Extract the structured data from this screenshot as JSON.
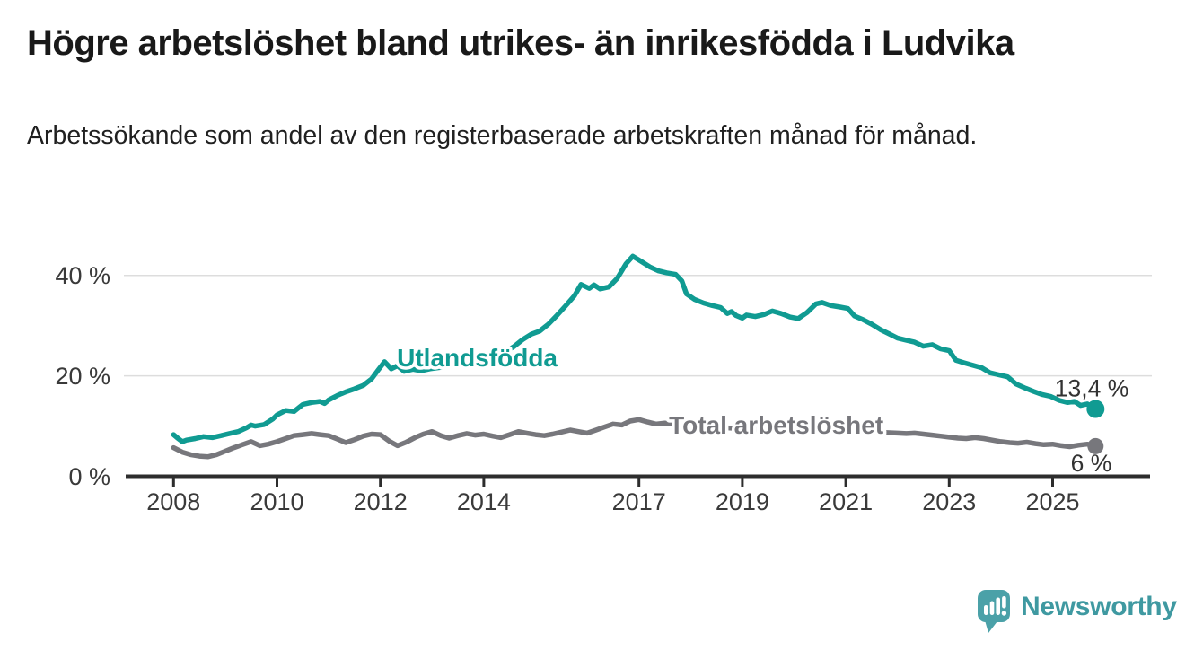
{
  "title": "Högre arbetslöshet bland utrikes- än inrikesfödda i Ludvika",
  "subtitle": "Arbetssökande som andel av den registerbaserade arbetskraften månad för månad.",
  "branding": {
    "logo_text": "Newsworthy",
    "icon": "newsworthy-speech-bubble-chart-icon"
  },
  "colors": {
    "foreign_born": "#109b92",
    "total": "#77777c",
    "axis": "#2d2d2d",
    "grid": "#dddddd",
    "tick_text": "#3a3a3a",
    "value_text": "#333333",
    "logo_icon": "#4ba1a8",
    "logo_text": "#3f99a1"
  },
  "chart_data": {
    "type": "line",
    "title": "Högre arbetslöshet bland utrikes- än inrikesfödda i Ludvika",
    "xlabel": "",
    "ylabel": "",
    "grid": "horizontal",
    "legend_position": "inline-labels",
    "x_axis": {
      "ticks": [
        2008,
        2010,
        2012,
        2014,
        2017,
        2019,
        2021,
        2023,
        2025
      ],
      "range": [
        2007.05,
        2026.9
      ]
    },
    "y_axis": {
      "tick_values": [
        0,
        20,
        40
      ],
      "tick_labels": [
        "0 %",
        "20 %",
        "40 %"
      ],
      "range": [
        0,
        46
      ],
      "unit": "%"
    },
    "series": [
      {
        "name": "Utlandsfödda",
        "color": "#109b92",
        "end_label": "13,4 %",
        "label_anchor": [
          2012.32,
          21.9
        ],
        "points": [
          [
            2008.0,
            8.3
          ],
          [
            2008.08,
            7.6
          ],
          [
            2008.17,
            6.9
          ],
          [
            2008.25,
            7.2
          ],
          [
            2008.42,
            7.5
          ],
          [
            2008.58,
            7.9
          ],
          [
            2008.75,
            7.7
          ],
          [
            2008.92,
            8.1
          ],
          [
            2009.08,
            8.5
          ],
          [
            2009.25,
            8.9
          ],
          [
            2009.42,
            9.7
          ],
          [
            2009.5,
            10.2
          ],
          [
            2009.58,
            10.0
          ],
          [
            2009.75,
            10.3
          ],
          [
            2009.92,
            11.4
          ],
          [
            2010.0,
            12.2
          ],
          [
            2010.17,
            13.1
          ],
          [
            2010.33,
            12.9
          ],
          [
            2010.5,
            14.3
          ],
          [
            2010.67,
            14.7
          ],
          [
            2010.83,
            14.9
          ],
          [
            2010.92,
            14.5
          ],
          [
            2011.0,
            15.2
          ],
          [
            2011.17,
            16.1
          ],
          [
            2011.33,
            16.8
          ],
          [
            2011.5,
            17.4
          ],
          [
            2011.67,
            18.1
          ],
          [
            2011.83,
            19.4
          ],
          [
            2011.96,
            21.2
          ],
          [
            2012.08,
            22.8
          ],
          [
            2012.21,
            21.4
          ],
          [
            2012.33,
            22.0
          ],
          [
            2012.46,
            20.9
          ],
          [
            2012.63,
            21.3
          ],
          [
            2012.79,
            21.0
          ],
          [
            2012.96,
            21.4
          ],
          [
            2013.17,
            21.7
          ],
          [
            2013.38,
            22.1
          ],
          [
            2013.58,
            22.4
          ],
          [
            2013.79,
            22.8
          ],
          [
            2013.96,
            23.3
          ],
          [
            2014.17,
            23.9
          ],
          [
            2014.38,
            24.6
          ],
          [
            2014.58,
            25.8
          ],
          [
            2014.75,
            27.2
          ],
          [
            2014.92,
            28.3
          ],
          [
            2015.08,
            28.9
          ],
          [
            2015.25,
            30.3
          ],
          [
            2015.42,
            32.1
          ],
          [
            2015.58,
            33.9
          ],
          [
            2015.75,
            35.9
          ],
          [
            2015.88,
            38.2
          ],
          [
            2016.04,
            37.4
          ],
          [
            2016.13,
            38.1
          ],
          [
            2016.25,
            37.3
          ],
          [
            2016.42,
            37.7
          ],
          [
            2016.58,
            39.4
          ],
          [
            2016.75,
            42.3
          ],
          [
            2016.88,
            43.8
          ],
          [
            2017.04,
            42.8
          ],
          [
            2017.21,
            41.7
          ],
          [
            2017.38,
            40.9
          ],
          [
            2017.54,
            40.5
          ],
          [
            2017.71,
            40.2
          ],
          [
            2017.83,
            38.9
          ],
          [
            2017.92,
            36.3
          ],
          [
            2018.08,
            35.2
          ],
          [
            2018.25,
            34.5
          ],
          [
            2018.42,
            34.0
          ],
          [
            2018.58,
            33.6
          ],
          [
            2018.71,
            32.4
          ],
          [
            2018.79,
            32.8
          ],
          [
            2018.88,
            32.0
          ],
          [
            2019.0,
            31.5
          ],
          [
            2019.08,
            32.1
          ],
          [
            2019.25,
            31.8
          ],
          [
            2019.42,
            32.2
          ],
          [
            2019.58,
            32.9
          ],
          [
            2019.75,
            32.4
          ],
          [
            2019.92,
            31.7
          ],
          [
            2020.08,
            31.4
          ],
          [
            2020.25,
            32.6
          ],
          [
            2020.42,
            34.3
          ],
          [
            2020.54,
            34.6
          ],
          [
            2020.71,
            34.0
          ],
          [
            2020.88,
            33.7
          ],
          [
            2021.04,
            33.4
          ],
          [
            2021.17,
            31.9
          ],
          [
            2021.33,
            31.2
          ],
          [
            2021.5,
            30.3
          ],
          [
            2021.67,
            29.2
          ],
          [
            2021.83,
            28.4
          ],
          [
            2022.0,
            27.5
          ],
          [
            2022.17,
            27.1
          ],
          [
            2022.33,
            26.7
          ],
          [
            2022.5,
            25.9
          ],
          [
            2022.67,
            26.2
          ],
          [
            2022.83,
            25.4
          ],
          [
            2023.0,
            25.0
          ],
          [
            2023.13,
            23.1
          ],
          [
            2023.29,
            22.6
          ],
          [
            2023.46,
            22.1
          ],
          [
            2023.63,
            21.6
          ],
          [
            2023.79,
            20.6
          ],
          [
            2023.96,
            20.2
          ],
          [
            2024.13,
            19.8
          ],
          [
            2024.29,
            18.4
          ],
          [
            2024.46,
            17.6
          ],
          [
            2024.63,
            16.9
          ],
          [
            2024.79,
            16.3
          ],
          [
            2024.96,
            15.9
          ],
          [
            2025.13,
            15.1
          ],
          [
            2025.29,
            14.7
          ],
          [
            2025.42,
            14.9
          ],
          [
            2025.54,
            14.1
          ],
          [
            2025.67,
            14.4
          ],
          [
            2025.83,
            13.4
          ]
        ]
      },
      {
        "name": "Total arbetslöshet",
        "color": "#77777c",
        "end_label": "6 %",
        "label_anchor": [
          2017.58,
          8.5
        ],
        "points": [
          [
            2008.0,
            5.7
          ],
          [
            2008.17,
            4.8
          ],
          [
            2008.33,
            4.3
          ],
          [
            2008.5,
            4.0
          ],
          [
            2008.67,
            3.9
          ],
          [
            2008.83,
            4.3
          ],
          [
            2009.0,
            5.0
          ],
          [
            2009.17,
            5.7
          ],
          [
            2009.33,
            6.3
          ],
          [
            2009.5,
            6.9
          ],
          [
            2009.67,
            6.1
          ],
          [
            2009.83,
            6.4
          ],
          [
            2010.0,
            6.9
          ],
          [
            2010.17,
            7.5
          ],
          [
            2010.33,
            8.1
          ],
          [
            2010.5,
            8.3
          ],
          [
            2010.67,
            8.5
          ],
          [
            2010.83,
            8.3
          ],
          [
            2011.0,
            8.1
          ],
          [
            2011.17,
            7.4
          ],
          [
            2011.33,
            6.7
          ],
          [
            2011.5,
            7.3
          ],
          [
            2011.67,
            8.0
          ],
          [
            2011.83,
            8.4
          ],
          [
            2012.0,
            8.3
          ],
          [
            2012.17,
            7.0
          ],
          [
            2012.33,
            6.1
          ],
          [
            2012.5,
            6.8
          ],
          [
            2012.67,
            7.7
          ],
          [
            2012.83,
            8.4
          ],
          [
            2013.0,
            8.9
          ],
          [
            2013.17,
            8.1
          ],
          [
            2013.33,
            7.6
          ],
          [
            2013.5,
            8.1
          ],
          [
            2013.67,
            8.5
          ],
          [
            2013.83,
            8.2
          ],
          [
            2014.0,
            8.4
          ],
          [
            2014.17,
            8.0
          ],
          [
            2014.33,
            7.7
          ],
          [
            2014.5,
            8.3
          ],
          [
            2014.67,
            8.9
          ],
          [
            2014.83,
            8.6
          ],
          [
            2015.0,
            8.3
          ],
          [
            2015.17,
            8.1
          ],
          [
            2015.33,
            8.4
          ],
          [
            2015.5,
            8.8
          ],
          [
            2015.67,
            9.2
          ],
          [
            2015.83,
            8.9
          ],
          [
            2016.0,
            8.6
          ],
          [
            2016.17,
            9.2
          ],
          [
            2016.33,
            9.8
          ],
          [
            2016.5,
            10.4
          ],
          [
            2016.67,
            10.2
          ],
          [
            2016.83,
            11.0
          ],
          [
            2017.0,
            11.3
          ],
          [
            2017.17,
            10.8
          ],
          [
            2017.33,
            10.4
          ],
          [
            2017.5,
            10.6
          ],
          [
            2017.67,
            10.4
          ],
          [
            2017.83,
            10.2
          ],
          [
            2018.0,
            10.3
          ],
          [
            2018.25,
            10.0
          ],
          [
            2018.5,
            9.8
          ],
          [
            2018.75,
            9.6
          ],
          [
            2019.0,
            9.5
          ],
          [
            2019.25,
            9.3
          ],
          [
            2019.5,
            9.2
          ],
          [
            2019.75,
            9.1
          ],
          [
            2020.0,
            9.2
          ],
          [
            2020.25,
            9.6
          ],
          [
            2020.5,
            9.8
          ],
          [
            2020.75,
            9.6
          ],
          [
            2021.0,
            9.3
          ],
          [
            2021.25,
            9.0
          ],
          [
            2021.5,
            8.8
          ],
          [
            2021.75,
            8.7
          ],
          [
            2022.0,
            8.6
          ],
          [
            2022.17,
            8.5
          ],
          [
            2022.33,
            8.6
          ],
          [
            2022.5,
            8.4
          ],
          [
            2022.67,
            8.2
          ],
          [
            2022.83,
            8.0
          ],
          [
            2023.0,
            7.8
          ],
          [
            2023.17,
            7.6
          ],
          [
            2023.33,
            7.5
          ],
          [
            2023.5,
            7.7
          ],
          [
            2023.67,
            7.5
          ],
          [
            2023.83,
            7.2
          ],
          [
            2024.0,
            6.9
          ],
          [
            2024.17,
            6.7
          ],
          [
            2024.33,
            6.6
          ],
          [
            2024.5,
            6.8
          ],
          [
            2024.67,
            6.5
          ],
          [
            2024.83,
            6.3
          ],
          [
            2025.0,
            6.4
          ],
          [
            2025.17,
            6.1
          ],
          [
            2025.33,
            5.9
          ],
          [
            2025.5,
            6.2
          ],
          [
            2025.67,
            6.4
          ],
          [
            2025.83,
            6.0
          ]
        ]
      }
    ]
  }
}
